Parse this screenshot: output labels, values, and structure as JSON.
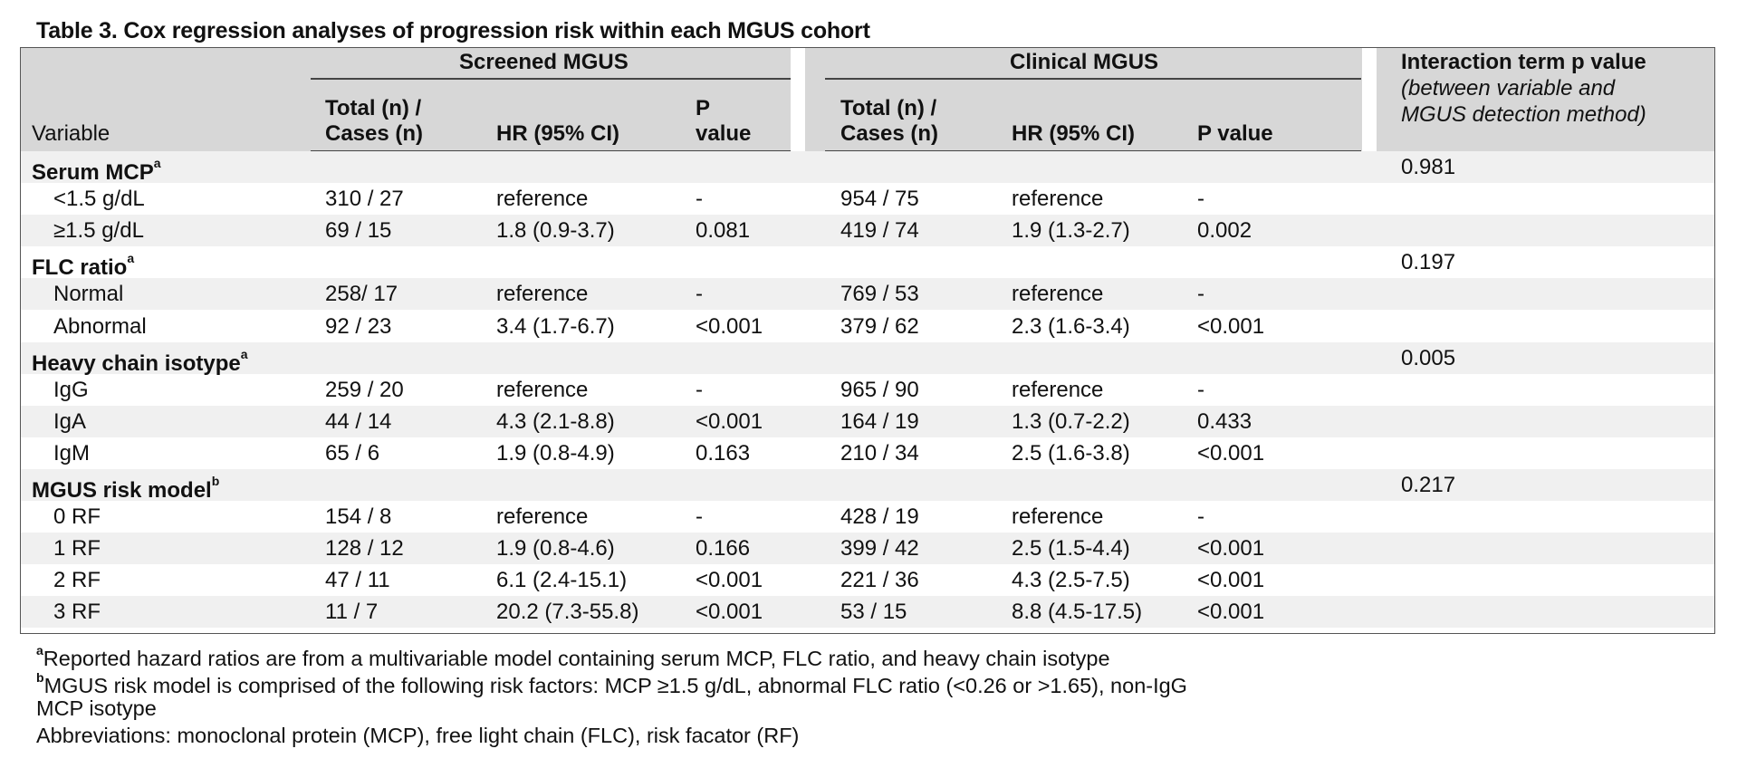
{
  "title": "Table 3. Cox regression analyses of progression risk within each MGUS cohort",
  "header": {
    "group_screened": "Screened MGUS",
    "group_clinical": "Clinical MGUS",
    "variable": "Variable",
    "total_cases_l1": "Total (n) /",
    "total_cases_l2": "Cases (n)",
    "hr": "HR (95% CI)",
    "p_l1": "P",
    "p_l2": "value",
    "p_value": "P value",
    "interaction_l1": "Interaction term p value",
    "interaction_l2": "(between variable and",
    "interaction_l3": "MGUS detection method)"
  },
  "sections": [
    {
      "label": "Serum MCP",
      "sup": "a",
      "interaction_p": "0.981",
      "rows": [
        {
          "label": "<1.5 g/dL",
          "s_n": "310 / 27",
          "s_hr": "reference",
          "s_p": "-",
          "c_n": "954 / 75",
          "c_hr": "reference",
          "c_p": "-"
        },
        {
          "label": "≥1.5 g/dL",
          "s_n": "69 / 15",
          "s_hr": "1.8 (0.9-3.7)",
          "s_p": "0.081",
          "c_n": "419 / 74",
          "c_hr": "1.9 (1.3-2.7)",
          "c_p": "0.002"
        }
      ]
    },
    {
      "label": "FLC ratio",
      "sup": "a",
      "interaction_p": "0.197",
      "rows": [
        {
          "label": "Normal",
          "s_n": "258/ 17",
          "s_hr": "reference",
          "s_p": "-",
          "c_n": "769 / 53",
          "c_hr": "reference",
          "c_p": "-"
        },
        {
          "label": "Abnormal",
          "s_n": "92 / 23",
          "s_hr": "3.4 (1.7-6.7)",
          "s_p": "<0.001",
          "c_n": "379 / 62",
          "c_hr": "2.3 (1.6-3.4)",
          "c_p": "<0.001"
        }
      ]
    },
    {
      "label": "Heavy chain isotype",
      "sup": "a",
      "interaction_p": "0.005",
      "rows": [
        {
          "label": "IgG",
          "s_n": "259 / 20",
          "s_hr": "reference",
          "s_p": "-",
          "c_n": "965 / 90",
          "c_hr": "reference",
          "c_p": "-"
        },
        {
          "label": "IgA",
          "s_n": "44 / 14",
          "s_hr": "4.3 (2.1-8.8)",
          "s_p": "<0.001",
          "c_n": "164 / 19",
          "c_hr": "1.3 (0.7-2.2)",
          "c_p": "0.433"
        },
        {
          "label": "IgM",
          "s_n": "65 / 6",
          "s_hr": "1.9 (0.8-4.9)",
          "s_p": "0.163",
          "c_n": "210 / 34",
          "c_hr": "2.5 (1.6-3.8)",
          "c_p": "<0.001"
        }
      ]
    },
    {
      "label": "MGUS risk model",
      "sup": "b",
      "interaction_p": "0.217",
      "rows": [
        {
          "label": "0 RF",
          "s_n": "154 / 8",
          "s_hr": "reference",
          "s_p": "-",
          "c_n": "428 / 19",
          "c_hr": "reference",
          "c_p": "-"
        },
        {
          "label": "1 RF",
          "s_n": "128 / 12",
          "s_hr": "1.9 (0.8-4.6)",
          "s_p": "0.166",
          "c_n": "399 / 42",
          "c_hr": "2.5 (1.5-4.4)",
          "c_p": "<0.001"
        },
        {
          "label": "2 RF",
          "s_n": "47 / 11",
          "s_hr": "6.1 (2.4-15.1)",
          "s_p": "<0.001",
          "c_n": "221 / 36",
          "c_hr": "4.3 (2.5-7.5)",
          "c_p": "<0.001"
        },
        {
          "label": "3 RF",
          "s_n": "11 / 7",
          "s_hr": "20.2 (7.3-55.8)",
          "s_p": "<0.001",
          "c_n": "53 / 15",
          "c_hr": "8.8 (4.5-17.5)",
          "c_p": "<0.001"
        }
      ]
    }
  ],
  "footnotes": {
    "a_mark": "a",
    "a_text": "Reported hazard ratios are from a multivariable model containing serum MCP, FLC ratio, and heavy chain isotype",
    "b_mark": "b",
    "b_text_l1": "MGUS risk model is comprised of the following risk factors: MCP ≥1.5 g/dL, abnormal FLC ratio (<0.26 or >1.65), non-IgG",
    "b_text_l2": "MCP isotype",
    "abbreviations": "Abbreviations: monoclonal protein (MCP), free light chain (FLC), risk facator (RF)"
  }
}
